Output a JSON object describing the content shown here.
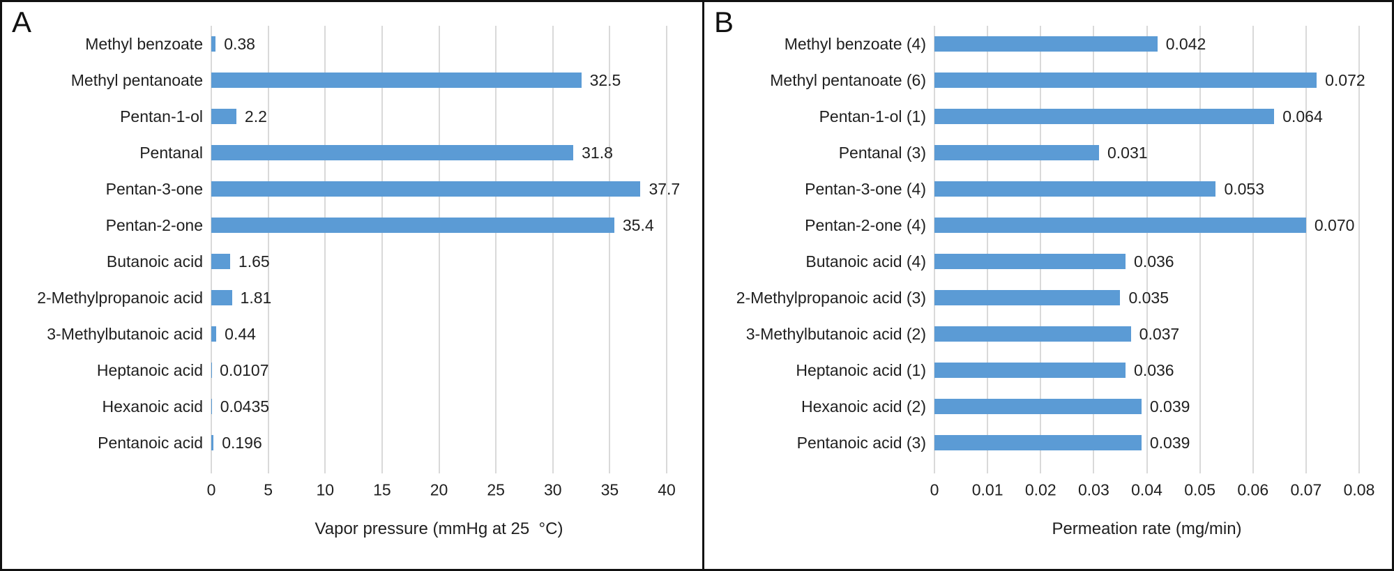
{
  "colors": {
    "bar": "#5B9BD5",
    "gridline": "#D9D9D9",
    "text": "#1F1F1F",
    "border": "#111111"
  },
  "chart_data": [
    {
      "type": "bar",
      "orientation": "horizontal",
      "panel_label": "A",
      "title": "",
      "categories": [
        "Methyl benzoate",
        "Methyl pentanoate",
        "Pentan-1-ol",
        "Pentanal",
        "Pentan-3-one",
        "Pentan-2-one",
        "Butanoic acid",
        "2-Methylpropanoic acid",
        "3-Methylbutanoic acid",
        "Heptanoic acid",
        "Hexanoic acid",
        "Pentanoic acid"
      ],
      "values": [
        0.38,
        32.5,
        2.2,
        31.8,
        37.7,
        35.4,
        1.65,
        1.81,
        0.44,
        0.0107,
        0.0435,
        0.196
      ],
      "value_labels": [
        "0.38",
        "32.5",
        "2.2",
        "31.8",
        "37.7",
        "35.4",
        "1.65",
        "1.81",
        "0.44",
        "0.0107",
        "0.0435",
        "0.196"
      ],
      "xlabel": "Vapor pressure (mmHg at 25  °C)",
      "ylabel": "",
      "xlim": [
        0,
        40
      ],
      "xticks": [
        "0",
        "5",
        "10",
        "15",
        "20",
        "25",
        "30",
        "35",
        "40"
      ],
      "grid": "vertical",
      "legend": false
    },
    {
      "type": "bar",
      "orientation": "horizontal",
      "panel_label": "B",
      "title": "",
      "categories": [
        "Methyl benzoate (4)",
        "Methyl pentanoate (6)",
        "Pentan-1-ol (1)",
        "Pentanal (3)",
        "Pentan-3-one (4)",
        "Pentan-2-one (4)",
        "Butanoic acid (4)",
        "2-Methylpropanoic acid (3)",
        "3-Methylbutanoic acid (2)",
        "Heptanoic acid (1)",
        "Hexanoic acid (2)",
        "Pentanoic acid (3)"
      ],
      "values": [
        0.042,
        0.072,
        0.064,
        0.031,
        0.053,
        0.07,
        0.036,
        0.035,
        0.037,
        0.036,
        0.039,
        0.039
      ],
      "value_labels": [
        "0.042",
        "0.072",
        "0.064",
        "0.031",
        "0.053",
        "0.070",
        "0.036",
        "0.035",
        "0.037",
        "0.036",
        "0.039",
        "0.039"
      ],
      "xlabel": "Permeation rate (mg/min)",
      "ylabel": "",
      "xlim": [
        0,
        0.08
      ],
      "xticks": [
        "0",
        "0.01",
        "0.02",
        "0.03",
        "0.04",
        "0.05",
        "0.06",
        "0.07",
        "0.08"
      ],
      "grid": "vertical",
      "legend": false
    }
  ]
}
